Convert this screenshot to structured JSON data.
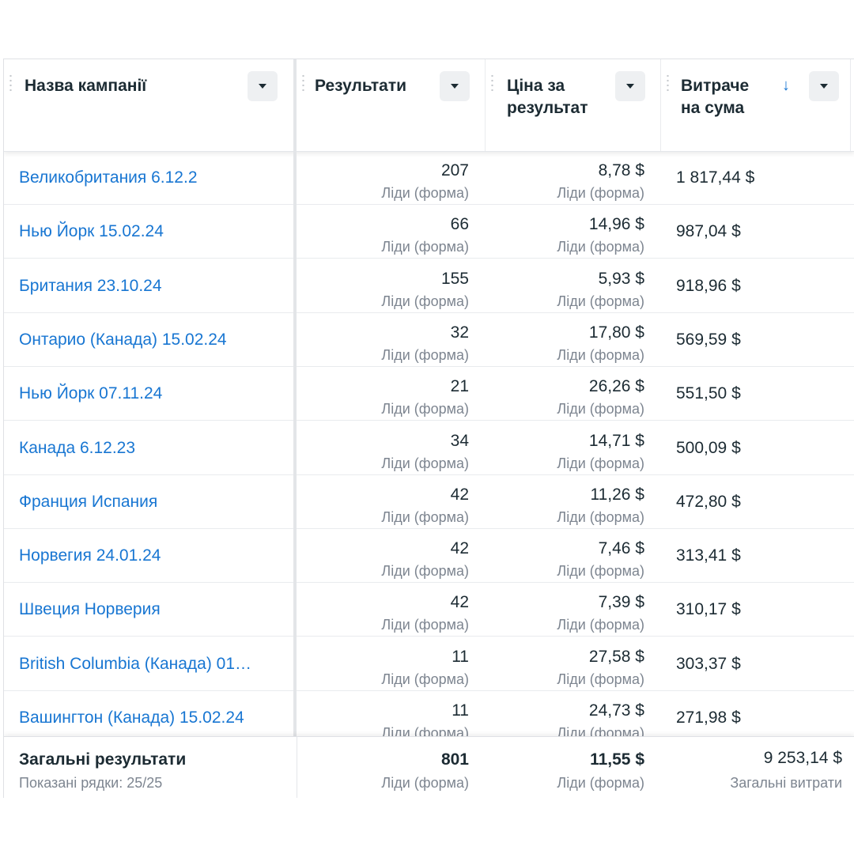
{
  "columns": {
    "name": "Назва кампанії",
    "results": "Результати",
    "cost_line1": "Ціна за",
    "cost_line2": "результат",
    "spend_line1": "Витраче",
    "spend_line2": "на сума",
    "sort_arrow": "↓"
  },
  "icons": {
    "dropdown": "caret-down-icon",
    "sort": "arrow-down-icon",
    "grip": "drag-handle-icon"
  },
  "colors": {
    "link": "#1876d2",
    "text": "#1c2b33",
    "muted": "#7d8590",
    "button_bg": "#eef0f2"
  },
  "rows": [
    {
      "name": "Великобритания 6.12.2",
      "results": "207",
      "result_type": "Ліди (форма)",
      "cost": "8,78 $",
      "cost_type": "Ліди (форма)",
      "spend": "1 817,44 $"
    },
    {
      "name": "Нью Йорк 15.02.24",
      "results": "66",
      "result_type": "Ліди (форма)",
      "cost": "14,96 $",
      "cost_type": "Ліди (форма)",
      "spend": "987,04 $"
    },
    {
      "name": "Британия 23.10.24",
      "results": "155",
      "result_type": "Ліди (форма)",
      "cost": "5,93 $",
      "cost_type": "Ліди (форма)",
      "spend": "918,96 $"
    },
    {
      "name": "Онтарио (Канада) 15.02.24",
      "results": "32",
      "result_type": "Ліди (форма)",
      "cost": "17,80 $",
      "cost_type": "Ліди (форма)",
      "spend": "569,59 $"
    },
    {
      "name": "Нью Йорк 07.11.24",
      "results": "21",
      "result_type": "Ліди (форма)",
      "cost": "26,26 $",
      "cost_type": "Ліди (форма)",
      "spend": "551,50 $"
    },
    {
      "name": "Канада 6.12.23",
      "results": "34",
      "result_type": "Ліди (форма)",
      "cost": "14,71 $",
      "cost_type": "Ліди (форма)",
      "spend": "500,09 $"
    },
    {
      "name": "Франция Испания",
      "results": "42",
      "result_type": "Ліди (форма)",
      "cost": "11,26 $",
      "cost_type": "Ліди (форма)",
      "spend": "472,80 $"
    },
    {
      "name": "Норвегия 24.01.24",
      "results": "42",
      "result_type": "Ліди (форма)",
      "cost": "7,46 $",
      "cost_type": "Ліди (форма)",
      "spend": "313,41 $"
    },
    {
      "name": "Швеция Норверия",
      "results": "42",
      "result_type": "Ліди (форма)",
      "cost": "7,39 $",
      "cost_type": "Ліди (форма)",
      "spend": "310,17 $"
    },
    {
      "name": "British Columbia (Канада) 01…",
      "results": "11",
      "result_type": "Ліди (форма)",
      "cost": "27,58 $",
      "cost_type": "Ліди (форма)",
      "spend": "303,37 $"
    },
    {
      "name": "Вашингтон (Канада) 15.02.24",
      "results": "11",
      "result_type": "Ліди (форма)",
      "cost": "24,73 $",
      "cost_type": "Ліди (форма)",
      "spend": "271,98 $"
    }
  ],
  "totals": {
    "title": "Загальні результати",
    "rows_shown": "Показані рядки: 25/25",
    "results": "801",
    "results_type": "Ліди (форма)",
    "cost": "11,55 $",
    "cost_type": "Ліди (форма)",
    "spend": "9 253,14 $",
    "spend_label": "Загальні витрати"
  }
}
